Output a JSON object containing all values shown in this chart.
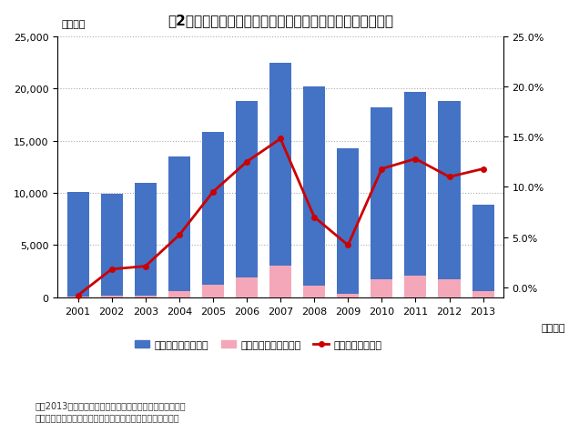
{
  "title": "図2：コマツの売上高、営業利益、売上高営業利益率の推移",
  "years": [
    2001,
    2002,
    2003,
    2004,
    2005,
    2006,
    2007,
    2008,
    2009,
    2010,
    2011,
    2012,
    2013
  ],
  "sales": [
    10100,
    9900,
    11000,
    13500,
    15800,
    18800,
    22500,
    20200,
    14300,
    18200,
    19700,
    18800,
    8900
  ],
  "operating_profit": [
    100,
    200,
    200,
    600,
    1200,
    1900,
    3000,
    1100,
    300,
    1700,
    2100,
    1700,
    600
  ],
  "op_margin": [
    -0.8,
    1.8,
    2.1,
    5.2,
    9.5,
    12.5,
    14.8,
    7.0,
    4.2,
    11.8,
    12.8,
    11.0,
    11.8
  ],
  "bar_color_sales": "#4472C4",
  "bar_color_profit": "#F4A7B9",
  "line_color": "#CC0000",
  "ylim_left": [
    0,
    25000
  ],
  "ylim_right": [
    -1.0,
    25.0
  ],
  "yticks_left": [
    0,
    5000,
    10000,
    15000,
    20000,
    25000
  ],
  "yticks_right": [
    0.0,
    5.0,
    10.0,
    15.0,
    20.0,
    25.0
  ],
  "ylabel_left": "（億円）",
  "xlabel_right": "（年度）",
  "legend_sales": "売上高（連結）億円",
  "legend_profit": "営業利益（連結）億円",
  "legend_margin": "売上高営業利益率",
  "note1": "注：2013年度の売上高、営業利益の数字は上半期の業績。",
  "note2": "【出典】売上高、営業利益の数字はコマツの決算資料を参照",
  "background_color": "#ffffff",
  "grid_color": "#aaaaaa",
  "bar_width": 0.65
}
